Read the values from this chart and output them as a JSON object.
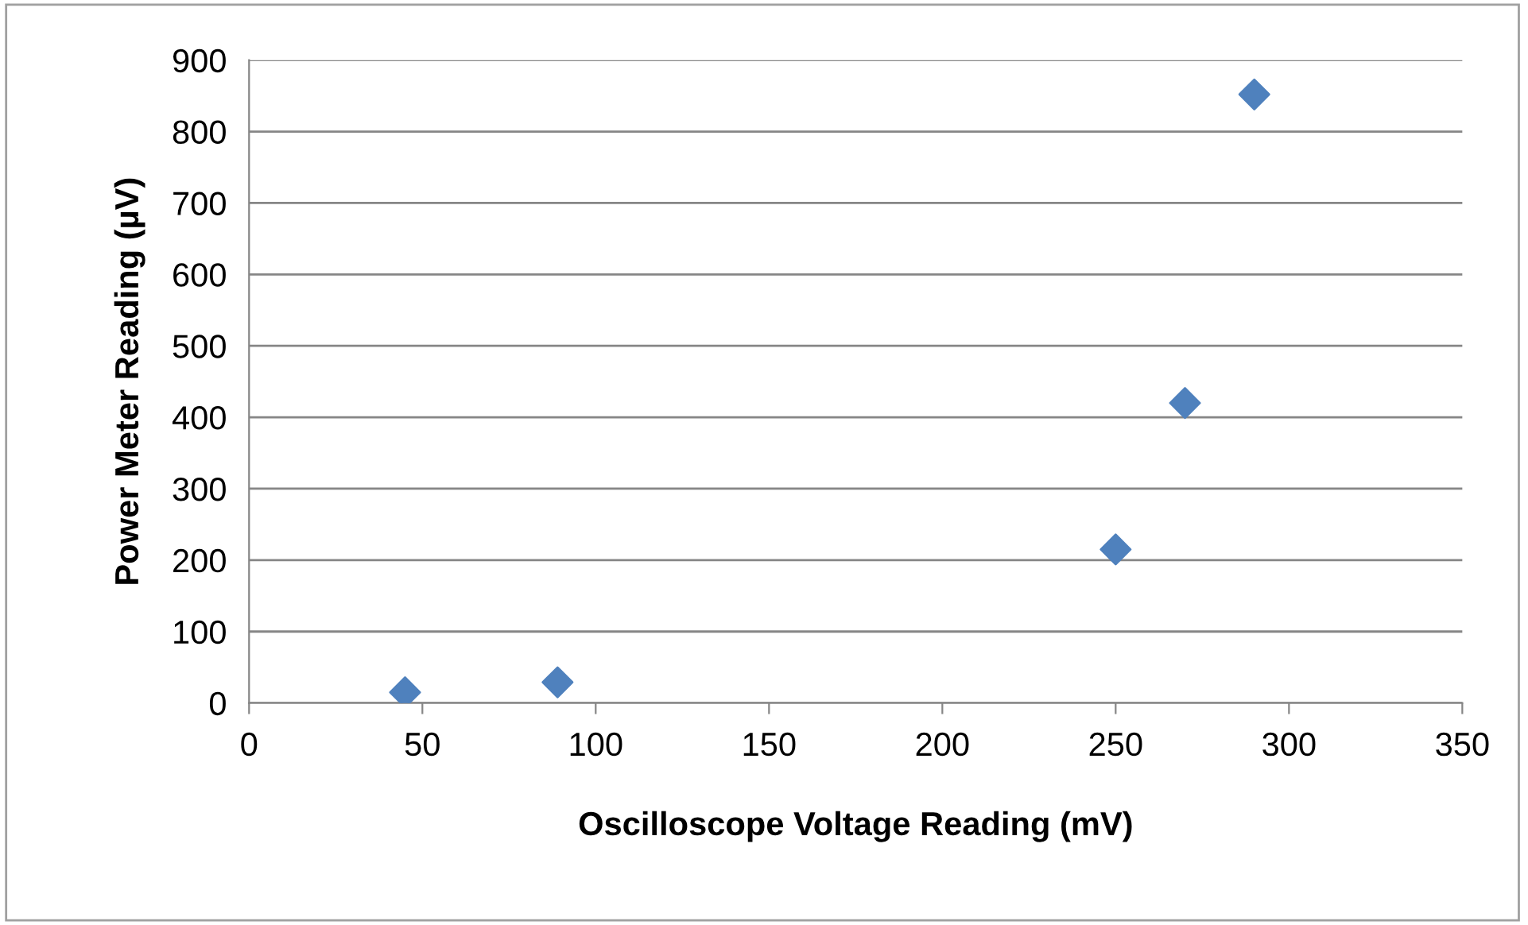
{
  "chart_data": {
    "type": "scatter",
    "xlabel": "Oscilloscope Voltage Reading (mV)",
    "ylabel": "Power Meter Reading (µV)",
    "x": [
      45,
      89,
      250,
      270,
      290
    ],
    "series": [
      {
        "color": "#4f81bd",
        "values": [
          15,
          29,
          215,
          420,
          852
        ]
      }
    ],
    "xlim": [
      0,
      350
    ],
    "xticks": [
      0,
      50,
      100,
      150,
      200,
      250,
      300,
      350
    ],
    "ylim": [
      0,
      900
    ],
    "yticks": [
      0,
      100,
      200,
      300,
      400,
      500,
      600,
      700,
      800,
      900
    ],
    "grid": "y",
    "marker": "diamond",
    "legend": false
  }
}
